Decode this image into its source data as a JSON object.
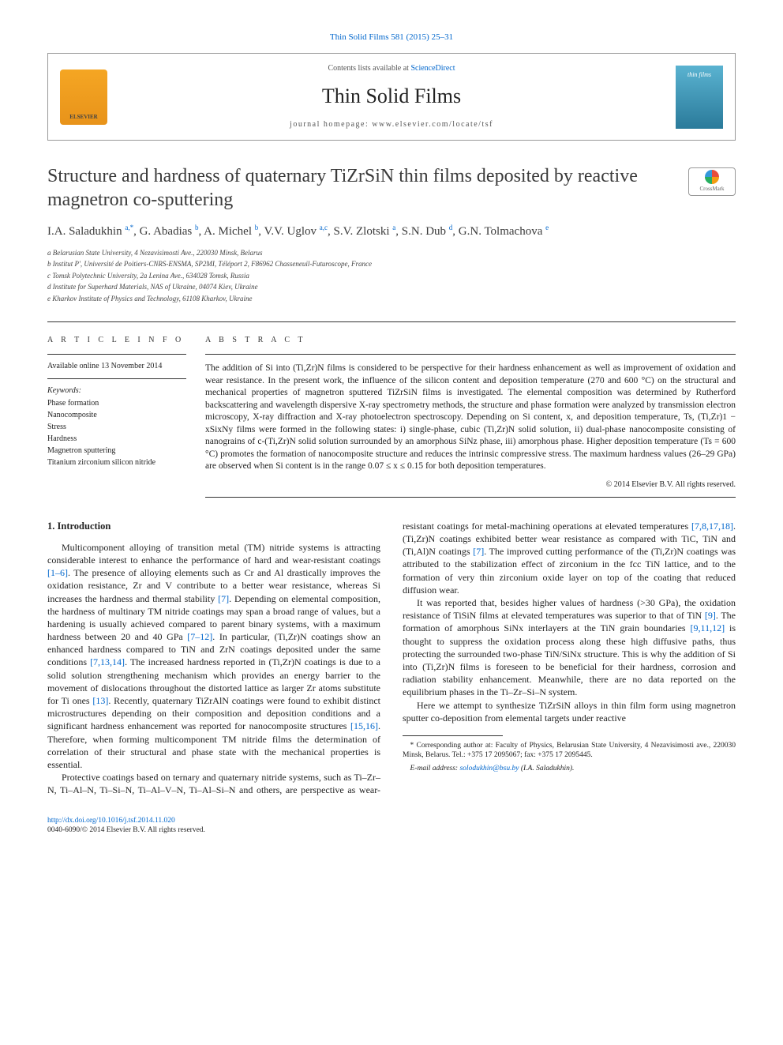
{
  "top_citation": "Thin Solid Films 581 (2015) 25–31",
  "header": {
    "contents_prefix": "Contents lists available at ",
    "contents_link": "ScienceDirect",
    "journal_name": "Thin Solid Films",
    "homepage_prefix": "journal homepage: ",
    "homepage_url": "www.elsevier.com/locate/tsf",
    "elsevier_label": "ELSEVIER",
    "cover_label": "thin films"
  },
  "crossmark_label": "CrossMark",
  "title": "Structure and hardness of quaternary TiZrSiN thin films deposited by reactive magnetron co-sputtering",
  "authors_html": "I.A. Saladukhin <sup>a,*</sup>, G. Abadias <sup>b</sup>, A. Michel <sup>b</sup>, V.V. Uglov <sup>a,c</sup>, S.V. Zlotski <sup>a</sup>, S.N. Dub <sup>d</sup>, G.N. Tolmachova <sup>e</sup>",
  "affiliations": [
    "a  Belarusian State University, 4 Nezavisimosti Ave., 220030 Minsk, Belarus",
    "b  Institut P', Université de Poitiers-CNRS-ENSMA, SP2MI, Téléport 2, F86962 Chasseneuil-Futuroscope, France",
    "c  Tomsk Polytechnic University, 2a Lenina Ave., 634028 Tomsk, Russia",
    "d  Institute for Superhard Materials, NAS of Ukraine, 04074 Kiev, Ukraine",
    "e  Kharkov Institute of Physics and Technology, 61108 Kharkov, Ukraine"
  ],
  "article_info": {
    "heading": "A R T I C L E   I N F O",
    "available": "Available online 13 November 2014",
    "keywords_label": "Keywords:",
    "keywords": [
      "Phase formation",
      "Nanocomposite",
      "Stress",
      "Hardness",
      "Magnetron sputtering",
      "Titanium zirconium silicon nitride"
    ]
  },
  "abstract": {
    "heading": "A B S T R A C T",
    "text": "The addition of Si into (Ti,Zr)N films is considered to be perspective for their hardness enhancement as well as improvement of oxidation and wear resistance. In the present work, the influence of the silicon content and deposition temperature (270 and 600 °C) on the structural and mechanical properties of magnetron sputtered TiZrSiN films is investigated. The elemental composition was determined by Rutherford backscattering and wavelength dispersive X-ray spectrometry methods, the structure and phase formation were analyzed by transmission electron microscopy, X-ray diffraction and X-ray photoelectron spectroscopy. Depending on Si content, x, and deposition temperature, Ts, (Ti,Zr)1 − xSixNy films were formed in the following states: i) single-phase, cubic (Ti,Zr)N solid solution, ii) dual-phase nanocomposite consisting of nanograins of c-(Ti,Zr)N solid solution surrounded by an amorphous SiNz phase, iii) amorphous phase. Higher deposition temperature (Ts = 600 °C) promotes the formation of nanocomposite structure and reduces the intrinsic compressive stress. The maximum hardness values (26–29 GPa) are observed when Si content is in the range 0.07 ≤ x ≤ 0.15 for both deposition temperatures.",
    "copyright": "© 2014 Elsevier B.V. All rights reserved."
  },
  "intro": {
    "heading": "1. Introduction",
    "p1_a": "Multicomponent alloying of transition metal (TM) nitride systems is attracting considerable interest to enhance the performance of hard and wear-resistant coatings ",
    "p1_ref1": "[1–6]",
    "p1_b": ". The presence of alloying elements such as Cr and Al drastically improves the oxidation resistance, Zr and V contribute to a better wear resistance, whereas Si increases the hardness and thermal stability ",
    "p1_ref2": "[7]",
    "p1_c": ". Depending on elemental composition, the hardness of multinary TM nitride coatings may span a broad range of values, but a hardening is usually achieved compared to parent binary systems, with a maximum hardness between 20 and 40 GPa ",
    "p1_ref3": "[7–12]",
    "p1_d": ". In particular, (Ti,Zr)N coatings show an enhanced hardness compared to TiN and ZrN coatings deposited under the same conditions ",
    "p1_ref4": "[7,13,14]",
    "p1_e": ". The increased hardness reported in (Ti,Zr)N coatings is due to a solid solution strengthening mechanism which provides an energy barrier to the movement of dislocations throughout the distorted lattice as larger Zr atoms substitute for Ti ones ",
    "p1_ref5": "[13]",
    "p1_f": ". Recently, quaternary TiZrAlN coatings were found to exhibit distinct microstructures depending on their composition and deposition conditions and a significant hardness enhancement was reported for nanocomposite structures ",
    "p1_ref6": "[15,16]",
    "p1_g": ". Therefore, when forming multicomponent TM nitride films the determination of correlation of their structural and phase state with the mechanical properties is essential.",
    "p2_a": "Protective coatings based on ternary and quaternary nitride systems, such as Ti–Zr–N, Ti–Al–N, Ti–Si–N, Ti–Al–V–N, Ti–Al–Si–N and others, are perspective as wear-resistant coatings for metal-machining operations at elevated temperatures ",
    "p2_ref1": "[7,8,17,18]",
    "p2_b": ". (Ti,Zr)N coatings exhibited better wear resistance as compared with TiC, TiN and (Ti,Al)N coatings ",
    "p2_ref2": "[7]",
    "p2_c": ". The improved cutting performance of the (Ti,Zr)N coatings was attributed to the stabilization effect of zirconium in the fcc TiN lattice, and to the formation of very thin zirconium oxide layer on top of the coating that reduced diffusion wear.",
    "p3_a": "It was reported that, besides higher values of hardness (>30 GPa), the oxidation resistance of TiSiN films at elevated temperatures was superior to that of TiN ",
    "p3_ref1": "[9]",
    "p3_b": ". The formation of amorphous SiNx interlayers at the TiN grain boundaries ",
    "p3_ref2": "[9,11,12]",
    "p3_c": " is thought to suppress the oxidation process along these high diffusive paths, thus protecting the surrounded two-phase TiN/SiNx structure. This is why the addition of Si into (Ti,Zr)N films is foreseen to be beneficial for their hardness, corrosion and radiation stability enhancement. Meanwhile, there are no data reported on the equilibrium phases in the Ti–Zr–Si–N system.",
    "p4": "Here we attempt to synthesize TiZrSiN alloys in thin film form using magnetron sputter co-deposition from elemental targets under reactive"
  },
  "footnote": {
    "corresponding": "* Corresponding author at: Faculty of Physics, Belarusian State University, 4 Nezavisimosti ave., 220030 Minsk, Belarus. Tel.: +375 17 2095067; fax: +375 17 2095445.",
    "email_label": "E-mail address: ",
    "email": "solodukhin@bsu.by",
    "email_name": " (I.A. Saladukhin)."
  },
  "footer": {
    "doi": "http://dx.doi.org/10.1016/j.tsf.2014.11.020",
    "issn_line": "0040-6090/© 2014 Elsevier B.V. All rights reserved."
  },
  "colors": {
    "link": "#0066cc",
    "text": "#222222",
    "border": "#999999",
    "rule": "#333333"
  }
}
